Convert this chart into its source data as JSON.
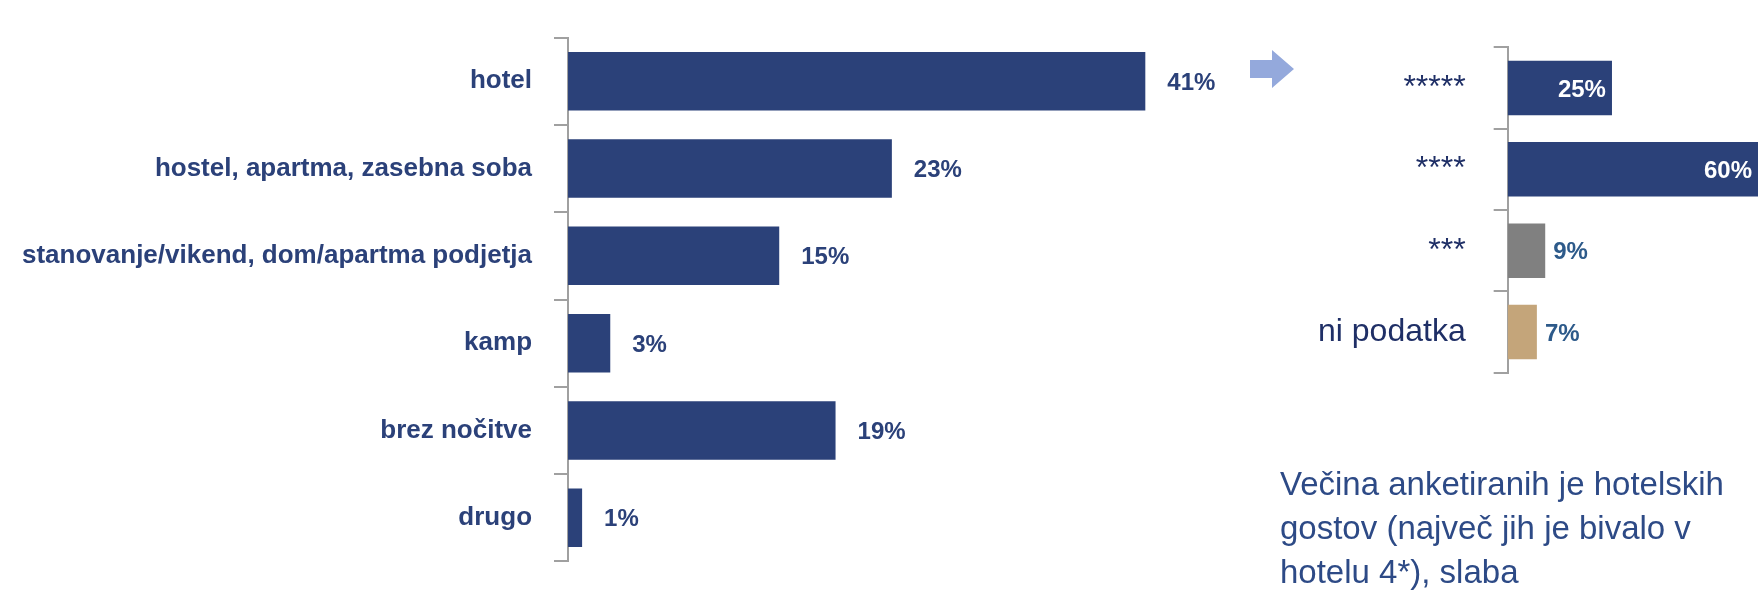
{
  "chart_data": [
    {
      "type": "bar",
      "orientation": "horizontal",
      "categories": [
        "hotel",
        "hostel, apartma, zasebna soba",
        "stanovanje/vikend, dom/apartma podjetja",
        "kamp",
        "brez nočitve",
        "drugo"
      ],
      "values": [
        41,
        23,
        15,
        3,
        19,
        1
      ],
      "colors": [
        "#2b4179",
        "#2b4179",
        "#2b4179",
        "#2b4179",
        "#2b4179",
        "#2b4179"
      ],
      "value_labels": [
        "41%",
        "23%",
        "15%",
        "3%",
        "19%",
        "1%"
      ]
    },
    {
      "type": "bar",
      "orientation": "horizontal",
      "categories": [
        "*****",
        "****",
        "***",
        "ni podatka"
      ],
      "values": [
        25,
        60,
        9,
        7
      ],
      "colors": [
        "#2b4179",
        "#2b4179",
        "#808080",
        "#c4a57a"
      ],
      "value_labels": [
        "25%",
        "60%",
        "9%",
        "7%"
      ],
      "annotations": [
        "Večina anketiranih je hotelskih gostov (največ jih je bivalo v hotelu 4*), slaba"
      ]
    }
  ]
}
